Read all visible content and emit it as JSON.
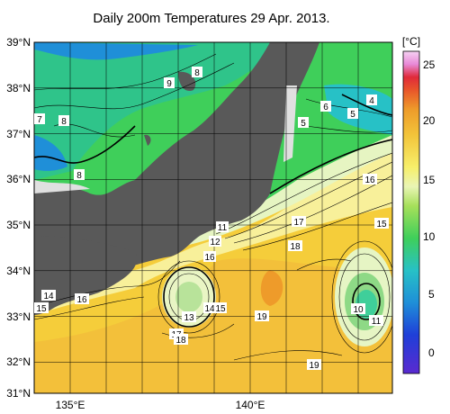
{
  "title": "Daily 200m Temperatures 29 Apr. 2013.",
  "unit": "[°C]",
  "lat_labels": [
    "39°N",
    "38°N",
    "37°N",
    "36°N",
    "35°N",
    "34°N",
    "33°N",
    "32°N",
    "31°N"
  ],
  "lon_labels": [
    "135°E",
    "140°E"
  ],
  "colorbar_ticks": [
    "25",
    "20",
    "15",
    "10",
    "5",
    "0"
  ],
  "contour_labels": [
    "9",
    "8",
    "7",
    "8",
    "5",
    "6",
    "5",
    "4",
    "8",
    "16",
    "17",
    "15",
    "18",
    "11",
    "12",
    "16",
    "14",
    "16",
    "15",
    "13",
    "14",
    "15",
    "19",
    "10",
    "11",
    "17",
    "18",
    "19"
  ],
  "colors": {
    "land": "#595959",
    "cold": "#1f8fd8",
    "cool": "#3fcf5a",
    "mild": "#c8f0a0",
    "warm": "#f5d23a",
    "warmer": "#f0b83a",
    "hot": "#e89b2a"
  }
}
